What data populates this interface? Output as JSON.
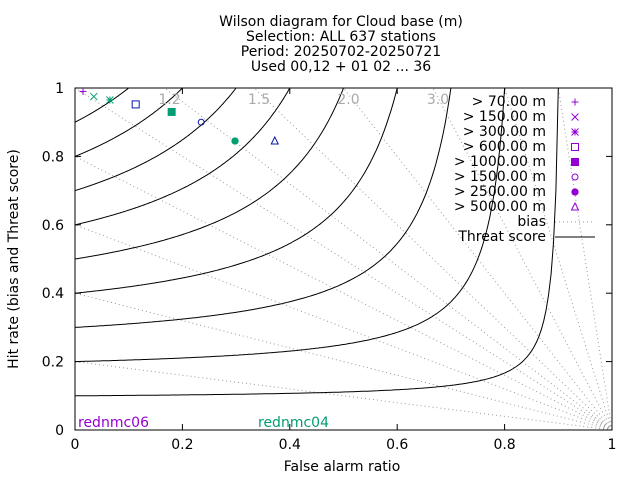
{
  "chart_data": {
    "type": "scatter",
    "title_lines": [
      "Wilson diagram  for Cloud base (m)",
      "Selection: ALL    637 stations",
      "Period: 20250702-20250721",
      "Used 00,12 + 01 02 ... 36"
    ],
    "xlabel": "False alarm ratio",
    "ylabel": "Hit rate (bias and Threat score)",
    "xlim": [
      0,
      1
    ],
    "ylim": [
      0,
      1
    ],
    "xticks": [
      0,
      0.2,
      0.4,
      0.6,
      0.8,
      1
    ],
    "xtick_labels": [
      "0",
      "0.2",
      "0.4",
      "0.6",
      "0.8",
      "1"
    ],
    "yticks": [
      0,
      0.2,
      0.4,
      0.6,
      0.8,
      1
    ],
    "ytick_labels": [
      "0",
      "0.2",
      "0.4",
      "0.6",
      "0.8",
      "1"
    ],
    "bias_lines": [
      0.2,
      0.4,
      0.6,
      0.8,
      1.0,
      1.2,
      1.5,
      2.0,
      3.0,
      5.0,
      10.0
    ],
    "bias_labels": [
      {
        "bias": 1.2,
        "text": "1.2"
      },
      {
        "bias": 1.5,
        "text": "1.5"
      },
      {
        "bias": 2.0,
        "text": "2.0"
      },
      {
        "bias": 3.0,
        "text": "3.0"
      }
    ],
    "threat_score_lines": [
      0.1,
      0.2,
      0.3,
      0.4,
      0.5,
      0.6,
      0.7,
      0.8,
      0.9
    ],
    "legend_placement": "top-right",
    "series": [
      {
        "name": "> 70.00 m",
        "marker": "plus",
        "color": "#9400d3",
        "x": 0.015,
        "y": 0.99
      },
      {
        "name": "> 150.00 m",
        "marker": "cross",
        "color": "#009e73",
        "x": 0.035,
        "y": 0.975
      },
      {
        "name": "> 300.00 m",
        "marker": "star",
        "color": "#009e73",
        "x": 0.065,
        "y": 0.965
      },
      {
        "name": "> 600.00 m",
        "marker": "square-open",
        "color": "#0b1aa8",
        "x": 0.113,
        "y": 0.952
      },
      {
        "name": "> 1000.00 m",
        "marker": "square-filled",
        "color": "#009e73",
        "x": 0.18,
        "y": 0.93
      },
      {
        "name": "> 1500.00 m",
        "marker": "circle-open",
        "color": "#0b1aa8",
        "x": 0.235,
        "y": 0.9
      },
      {
        "name": "> 2500.00 m",
        "marker": "circle-filled",
        "color": "#009e73",
        "x": 0.298,
        "y": 0.845
      },
      {
        "name": "> 5000.00 m",
        "marker": "triangle-open",
        "color": "#0b1aa8",
        "x": 0.372,
        "y": 0.845
      }
    ],
    "legend_marker_color": "#9400d3",
    "line_legend": [
      {
        "name": "bias",
        "style": "dotted"
      },
      {
        "name": "Threat score",
        "style": "solid"
      }
    ],
    "annotations": [
      {
        "text": "rednmc06",
        "color": "#9400d3"
      },
      {
        "text": "rednmc04",
        "color": "#009e73"
      }
    ]
  }
}
